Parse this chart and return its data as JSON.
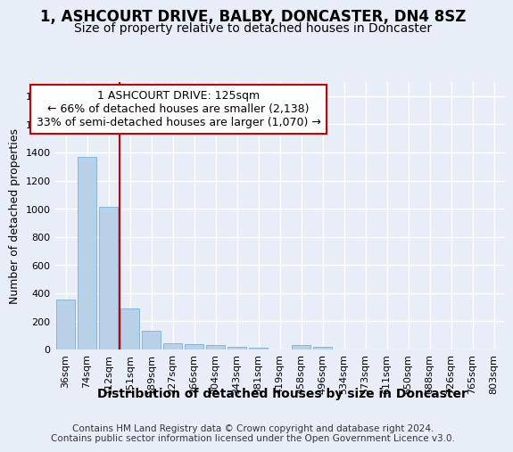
{
  "title": "1, ASHCOURT DRIVE, BALBY, DONCASTER, DN4 8SZ",
  "subtitle": "Size of property relative to detached houses in Doncaster",
  "xlabel": "Distribution of detached houses by size in Doncaster",
  "ylabel": "Number of detached properties",
  "categories": [
    "36sqm",
    "74sqm",
    "112sqm",
    "151sqm",
    "189sqm",
    "227sqm",
    "266sqm",
    "304sqm",
    "343sqm",
    "381sqm",
    "419sqm",
    "458sqm",
    "496sqm",
    "534sqm",
    "573sqm",
    "611sqm",
    "650sqm",
    "688sqm",
    "726sqm",
    "765sqm",
    "803sqm"
  ],
  "values": [
    355,
    1370,
    1015,
    290,
    130,
    42,
    35,
    30,
    20,
    15,
    0,
    30,
    20,
    0,
    0,
    0,
    0,
    0,
    0,
    0,
    0
  ],
  "bar_color": "#b8d0e8",
  "bar_edge_color": "#7aafd4",
  "vline_color": "#cc0000",
  "annotation_text": "1 ASHCOURT DRIVE: 125sqm\n← 66% of detached houses are smaller (2,138)\n33% of semi-detached houses are larger (1,070) →",
  "annotation_box_color": "#ffffff",
  "annotation_box_edge": "#cc0000",
  "ylim": [
    0,
    1900
  ],
  "yticks": [
    0,
    200,
    400,
    600,
    800,
    1000,
    1200,
    1400,
    1600,
    1800
  ],
  "bg_color": "#e8eef8",
  "plot_bg_color": "#e8eef8",
  "footer_text": "Contains HM Land Registry data © Crown copyright and database right 2024.\nContains public sector information licensed under the Open Government Licence v3.0.",
  "title_fontsize": 12,
  "subtitle_fontsize": 10,
  "xlabel_fontsize": 10,
  "ylabel_fontsize": 9,
  "tick_fontsize": 8,
  "annotation_fontsize": 9,
  "footer_fontsize": 7.5
}
